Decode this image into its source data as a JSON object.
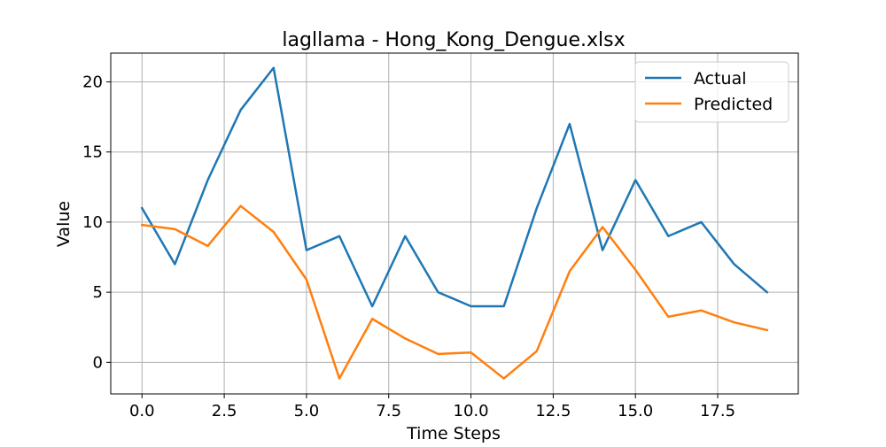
{
  "chart_data": {
    "type": "line",
    "title": "lagllama - Hong_Kong_Dengue.xlsx",
    "xlabel": "Time Steps",
    "ylabel": "Value",
    "x": [
      0,
      1,
      2,
      3,
      4,
      5,
      6,
      7,
      8,
      9,
      10,
      11,
      12,
      13,
      14,
      15,
      16,
      17,
      18,
      19
    ],
    "xlim": [
      -0.95,
      19.95
    ],
    "ylim": [
      -2.25,
      22.05
    ],
    "xticks": [
      0.0,
      2.5,
      5.0,
      7.5,
      10.0,
      12.5,
      15.0,
      17.5
    ],
    "xtick_labels": [
      "0.0",
      "2.5",
      "5.0",
      "7.5",
      "10.0",
      "12.5",
      "15.0",
      "17.5"
    ],
    "yticks": [
      0,
      5,
      10,
      15,
      20
    ],
    "ytick_labels": [
      "0",
      "5",
      "10",
      "15",
      "20"
    ],
    "grid": true,
    "legend_position": "top-right",
    "series": [
      {
        "name": "Actual",
        "color": "#1f77b4",
        "values": [
          11,
          7,
          13,
          18,
          21,
          8,
          9,
          4,
          9,
          5,
          4,
          4,
          11,
          17,
          8,
          13,
          9,
          10,
          7,
          5
        ]
      },
      {
        "name": "Predicted",
        "color": "#ff7f0e",
        "values": [
          9.8,
          9.5,
          8.3,
          11.15,
          9.3,
          5.9,
          -1.15,
          3.1,
          1.7,
          0.6,
          0.7,
          -1.15,
          0.8,
          6.5,
          9.65,
          6.6,
          3.25,
          3.7,
          2.85,
          2.3
        ]
      }
    ]
  }
}
